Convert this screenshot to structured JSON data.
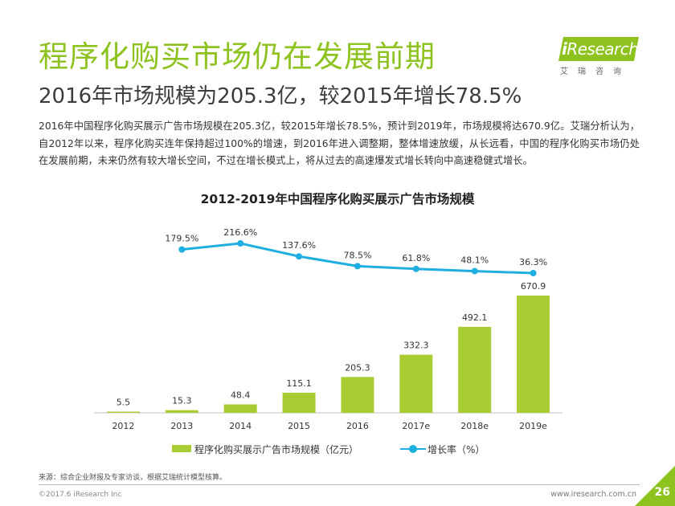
{
  "header": {
    "title": "程序化购买市场仍在发展前期",
    "subtitle": "2016年市场规模为205.3亿，较2015年增长78.5%",
    "paragraph": "2016年中国程序化购买展示广告市场规模在205.3亿，较2015年增长78.5%，预计到2019年，市场规模将达670.9亿。艾瑞分析认为，自2012年以来，程序化购买连年保持超过100%的增速，到2016年进入调整期，整体增速放缓，从长远看，中国的程序化购买市场仍处在发展前期，未来仍然有较大增长空间，不过在增长模式上，将从过去的高速爆发式增长转向中高速稳健式增长。"
  },
  "logo": {
    "brand_i": "i",
    "brand_rest": "Research",
    "tagline": "艾瑞咨询",
    "color": "#8dc21f"
  },
  "chart_data": {
    "type": "bar",
    "title": "2012-2019年中国程序化购买展示广告市场规模",
    "categories": [
      "2012",
      "2013",
      "2014",
      "2015",
      "2016",
      "2017e",
      "2018e",
      "2019e"
    ],
    "series": [
      {
        "name": "程序化购买展示广告市场规模（亿元）",
        "type": "bar",
        "color": "#a9cc33",
        "values": [
          5.5,
          15.3,
          48.4,
          115.1,
          205.3,
          332.3,
          492.1,
          670.9
        ],
        "labels": [
          "5.5",
          "15.3",
          "48.4",
          "115.1",
          "205.3",
          "332.3",
          "492.1",
          "670.9"
        ]
      },
      {
        "name": "增长率（%）",
        "type": "line",
        "color": "#1eaee0",
        "values": [
          null,
          179.5,
          216.6,
          137.6,
          78.5,
          61.8,
          48.1,
          36.3
        ],
        "labels": [
          "",
          "179.5%",
          "216.6%",
          "137.6%",
          "78.5%",
          "61.8%",
          "48.1%",
          "36.3%"
        ]
      }
    ],
    "ylim": [
      0,
      700
    ],
    "grid": false,
    "legend_position": "bottom"
  },
  "footer": {
    "source": "来源：综合企业财报及专家访谈，根据艾瑞统计模型核算。",
    "copyright": "©2017.6 iResearch Inc",
    "website": "www.iresearch.com.cn",
    "page_number": "26",
    "accent_color": "#8dc21f"
  }
}
